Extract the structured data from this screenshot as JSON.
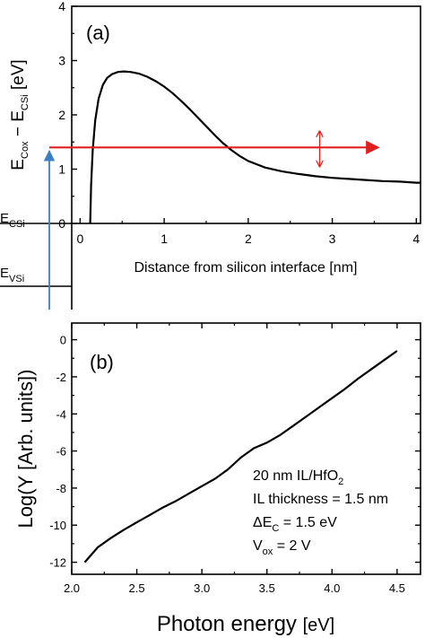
{
  "chart_data": [
    {
      "type": "line",
      "panel_label": "(a)",
      "xlabel": "Distance from silicon interface [nm]",
      "ylabel": {
        "main1": "E",
        "sub1": "Cox",
        "mid": " − E",
        "sub2": "CSi",
        "tail": " [eV]"
      },
      "xlim": [
        -0.1,
        4.05
      ],
      "ylim": [
        0,
        4
      ],
      "xticks": [
        "0",
        "1",
        "2",
        "3",
        "4"
      ],
      "yticks": [
        "0",
        "1",
        "2",
        "3",
        "4"
      ],
      "grid": false,
      "series": [
        {
          "color": "#000000",
          "x": [
            0.12,
            0.13,
            0.15,
            0.18,
            0.22,
            0.27,
            0.32,
            0.38,
            0.45,
            0.52,
            0.6,
            0.7,
            0.8,
            0.9,
            1.0,
            1.1,
            1.2,
            1.3,
            1.4,
            1.5,
            1.6,
            1.7,
            1.8,
            1.9,
            2.0,
            2.2,
            2.4,
            2.6,
            2.8,
            3.0,
            3.2,
            3.4,
            3.6,
            3.8,
            4.0,
            4.05
          ],
          "y": [
            0.0,
            0.7,
            1.35,
            1.9,
            2.3,
            2.55,
            2.68,
            2.75,
            2.79,
            2.8,
            2.79,
            2.76,
            2.7,
            2.62,
            2.52,
            2.4,
            2.26,
            2.11,
            1.95,
            1.79,
            1.63,
            1.48,
            1.35,
            1.24,
            1.15,
            1.03,
            0.96,
            0.91,
            0.87,
            0.84,
            0.82,
            0.8,
            0.78,
            0.77,
            0.75,
            0.75
          ]
        }
      ],
      "annotations": {
        "photon_arrow_y": 1.4,
        "photon_arrow_color": "#e02020",
        "uncertainty_arrow_x": 2.85,
        "uncertainty_arrow_range": [
          1.05,
          1.7
        ],
        "excitation_arrow_color": "#3a7fc1",
        "level_labels": {
          "ecsi": {
            "main": "E",
            "sub": "CSi"
          },
          "evsi": {
            "main": "E",
            "sub": "VSi"
          }
        }
      }
    },
    {
      "type": "line",
      "panel_label": "(b)",
      "xlabel": {
        "main": "Photon energy ",
        "unit": "[eV]"
      },
      "ylabel": "Log(Y [Arb. units])",
      "xlim": [
        2.0,
        4.68
      ],
      "ylim": [
        -12.65,
        0.9
      ],
      "xticks": [
        "2.0",
        "2.5",
        "3.0",
        "3.5",
        "4.0",
        "4.5"
      ],
      "yticks": [
        "0",
        "-2",
        "-4",
        "-6",
        "-8",
        "-10",
        "-12"
      ],
      "grid": false,
      "series": [
        {
          "color": "#000000",
          "x": [
            2.1,
            2.2,
            2.3,
            2.4,
            2.5,
            2.6,
            2.7,
            2.8,
            2.9,
            3.0,
            3.1,
            3.2,
            3.3,
            3.4,
            3.5,
            3.6,
            3.7,
            3.8,
            3.9,
            4.0,
            4.1,
            4.2,
            4.3,
            4.4,
            4.5
          ],
          "y": [
            -12.0,
            -11.2,
            -10.7,
            -10.25,
            -9.85,
            -9.45,
            -9.05,
            -8.7,
            -8.3,
            -7.9,
            -7.5,
            -7.0,
            -6.35,
            -5.85,
            -5.55,
            -5.15,
            -4.65,
            -4.15,
            -3.65,
            -3.15,
            -2.65,
            -2.1,
            -1.6,
            -1.1,
            -0.6
          ]
        }
      ],
      "annotations": {
        "line1": {
          "main": "20 nm IL/HfO",
          "sub": "2"
        },
        "line2": {
          "main": "IL thickness = 1.5 nm"
        },
        "line3": {
          "pre": "ΔE",
          "sub": "C",
          "post": " = 1.5 eV"
        },
        "line4": {
          "pre": "V",
          "sub": "ox",
          "post": " = 2 V"
        }
      }
    }
  ]
}
